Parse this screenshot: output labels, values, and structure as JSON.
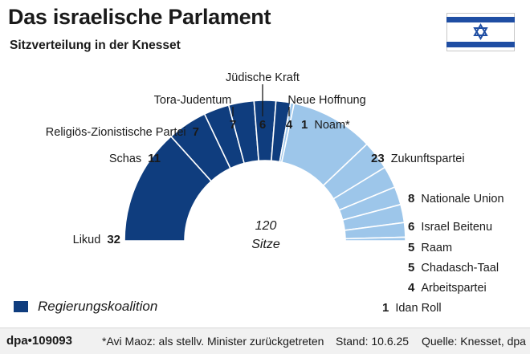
{
  "header": {
    "title": "Das israelische Parlament",
    "subtitle": "Sitzverteilung in der Knesset"
  },
  "center": {
    "line1": "120",
    "line2": "Sitze"
  },
  "legend": {
    "label": "Regierungskoalition"
  },
  "footer": {
    "credit": "dpa•109093",
    "footnote": "*Avi Maoz: als stellv. Minister zurückgetreten",
    "stand": "Stand: 10.6.25",
    "source": "Quelle: Knesset, dpa"
  },
  "colors": {
    "coalition": "#0f3d7e",
    "opposition": "#9dc6ea",
    "flag_blue": "#1f4ea3"
  },
  "chart_data": {
    "type": "semicircle-parliament",
    "total": 120,
    "parties": [
      {
        "name": "Likud",
        "seats": 32,
        "group": "coalition"
      },
      {
        "name": "Schas",
        "seats": 11,
        "group": "coalition"
      },
      {
        "name": "Religiös-Zionistische Partei",
        "seats": 7,
        "group": "coalition"
      },
      {
        "name": "Tora-Judentum",
        "seats": 7,
        "group": "coalition"
      },
      {
        "name": "Jüdische Kraft",
        "seats": 6,
        "group": "coalition"
      },
      {
        "name": "Neue Hoffnung",
        "seats": 4,
        "group": "coalition"
      },
      {
        "name": "Noam*",
        "seats": 1,
        "group": "opposition"
      },
      {
        "name": "Zukunftspartei",
        "seats": 23,
        "group": "opposition"
      },
      {
        "name": "Nationale Union",
        "seats": 8,
        "group": "opposition"
      },
      {
        "name": "Israel Beitenu",
        "seats": 6,
        "group": "opposition"
      },
      {
        "name": "Raam",
        "seats": 5,
        "group": "opposition"
      },
      {
        "name": "Chadasch-Taal",
        "seats": 5,
        "group": "opposition"
      },
      {
        "name": "Arbeitspartei",
        "seats": 4,
        "group": "opposition"
      },
      {
        "name": "Idan Roll",
        "seats": 1,
        "group": "opposition"
      }
    ]
  }
}
